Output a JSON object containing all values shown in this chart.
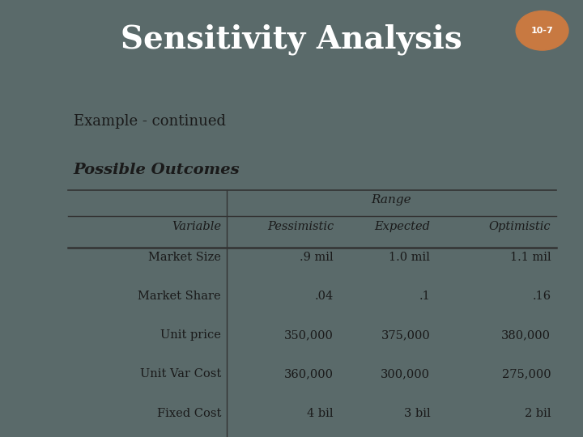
{
  "title": "Sensitivity Analysis",
  "slide_num": "10-7",
  "subtitle": "Example - continued",
  "section_title": "Possible Outcomes",
  "header_bg": "#2d4a4a",
  "content_bg": "#f5f0e0",
  "sidebar_color": "#5a6a6a",
  "title_color": "#ffffff",
  "content_color": "#1a1a1a",
  "table_headers": [
    "Variable",
    "Pessimistic",
    "Expected",
    "Optimistic"
  ],
  "range_label": "Range",
  "table_rows": [
    [
      "Market Size",
      ".9 mil",
      "1.0 mil",
      "1.1 mil"
    ],
    [
      "Market Share",
      ".04",
      ".1",
      ".16"
    ],
    [
      "Unit price",
      "350,000",
      "375,000",
      "380,000"
    ],
    [
      "Unit Var Cost",
      "360,000",
      "300,000",
      "275,000"
    ],
    [
      "Fixed Cost",
      "4 bil",
      "3 bil",
      "2 bil"
    ]
  ],
  "figsize": [
    7.2,
    5.4
  ],
  "dpi": 100
}
